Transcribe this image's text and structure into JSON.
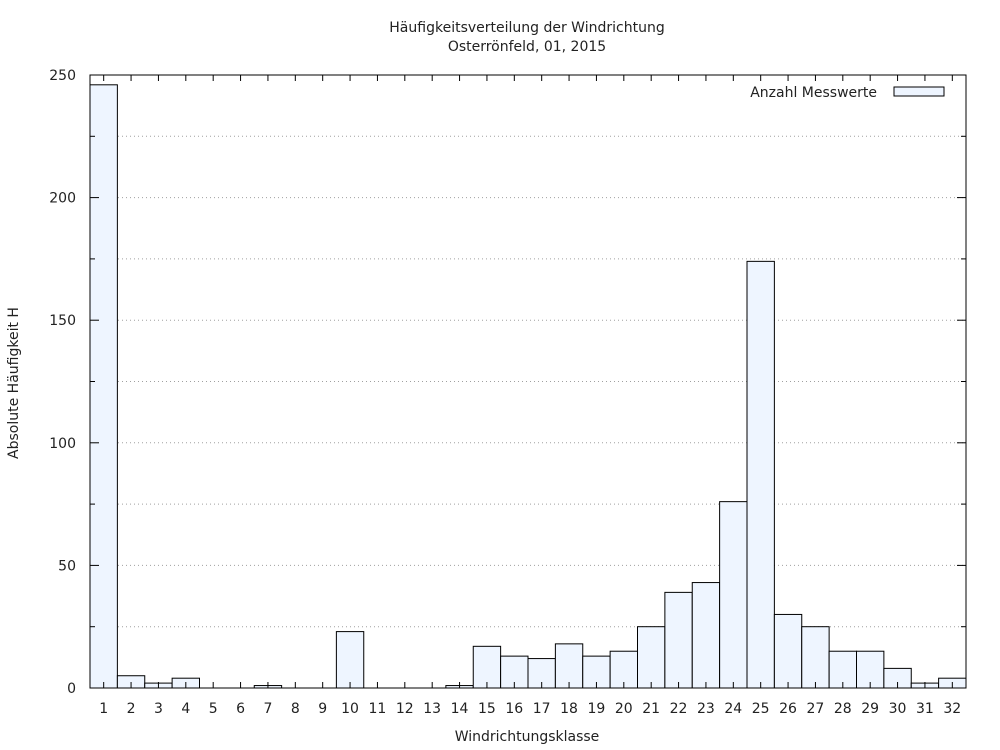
{
  "chart_data": {
    "type": "bar",
    "title": "Häufigkeitsverteilung der Windrichtung",
    "subtitle": "Osterrönfeld, 01, 2015",
    "xlabel": "Windrichtungsklasse",
    "ylabel": "Absolute Häufigkeit H",
    "ylim": [
      0,
      250
    ],
    "yticks": [
      "0",
      "50",
      "100",
      "150",
      "200",
      "250"
    ],
    "grid": "horizontal dotted",
    "legend_position": "top-right",
    "categories": [
      "1",
      "2",
      "3",
      "4",
      "5",
      "6",
      "7",
      "8",
      "9",
      "10",
      "11",
      "12",
      "13",
      "14",
      "15",
      "16",
      "17",
      "18",
      "19",
      "20",
      "21",
      "22",
      "23",
      "24",
      "25",
      "26",
      "27",
      "28",
      "29",
      "30",
      "31",
      "32"
    ],
    "series": [
      {
        "name": "Anzahl Messwerte",
        "values": [
          246,
          5,
          2,
          4,
          0,
          0,
          1,
          0,
          0,
          23,
          0,
          0,
          0,
          1,
          17,
          13,
          12,
          18,
          13,
          15,
          25,
          39,
          43,
          76,
          174,
          30,
          25,
          15,
          15,
          8,
          2,
          4
        ]
      }
    ],
    "colors": {
      "bar_fill": "#eef5ff",
      "bar_stroke": "#000000",
      "grid": "#a0a0a0"
    }
  }
}
